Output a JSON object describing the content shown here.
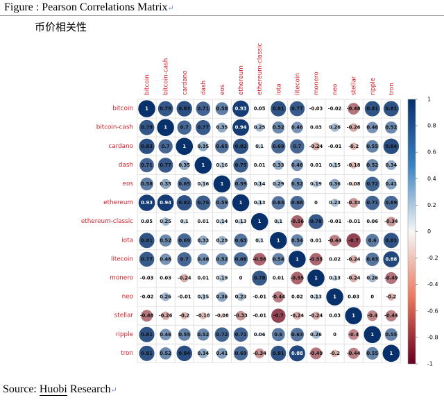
{
  "figure": {
    "prefix": "Figure",
    "separator": " : ",
    "title": "Pearson Correlations Matrix",
    "subtitle": "币价相关性",
    "source_prefix": "Source: ",
    "source_link": "Huobi",
    "source_suffix": " Research",
    "paragraph_mark": "↵"
  },
  "colors": {
    "positive_dark": "#08306b",
    "positive_light": "#d7e8f4",
    "negative_dark": "#67001f",
    "negative_light": "#fbe1d4",
    "label_red": "#d0202a"
  },
  "chart_data": {
    "type": "heatmap",
    "style": "correlation circles (corrplot)",
    "title": "Pearson Correlations Matrix",
    "labels": [
      "bitcoin",
      "bitcoin-cash",
      "cardano",
      "dash",
      "eos",
      "ethereum",
      "ethereum-classic",
      "iota",
      "litecoin",
      "monero",
      "neo",
      "stellar",
      "ripple",
      "tron"
    ],
    "value_labels": [
      [
        "1",
        "0.79",
        "0.83",
        "0.71",
        "0.58",
        "0.93",
        "0.05",
        "0.81",
        "0.77",
        "-0.03",
        "-0.02",
        "-0.48",
        "0.81",
        "0.81"
      ],
      [
        "0.79",
        "1",
        "0.7",
        "0.77",
        "0.35",
        "0.94",
        "0.25",
        "0.52",
        "0.46",
        "0.03",
        "0.26",
        "-0.26",
        "0.46",
        "0.52"
      ],
      [
        "0.83",
        "0.7",
        "1",
        "0.35",
        "0.65",
        "0.82",
        "0.1",
        "0.69",
        "0.7",
        "-0.24",
        "-0.01",
        "-0.2",
        "0.55",
        "0.84"
      ],
      [
        "0.71",
        "0.77",
        "0.35",
        "1",
        "0.16",
        "0.75",
        "0.01",
        "0.33",
        "0.48",
        "0.01",
        "0.15",
        "-0.18",
        "0.52",
        "0.34"
      ],
      [
        "0.58",
        "0.35",
        "0.65",
        "0.16",
        "1",
        "0.59",
        "0.14",
        "0.29",
        "0.52",
        "0.19",
        "0.36",
        "-0.08",
        "0.72",
        "0.41"
      ],
      [
        "0.93",
        "0.94",
        "0.82",
        "0.75",
        "0.59",
        "1",
        "0.13",
        "0.63",
        "0.68",
        "0",
        "0.23",
        "-0.33",
        "0.71",
        "0.69"
      ],
      [
        "0.05",
        "0.25",
        "0.1",
        "0.01",
        "0.14",
        "0.13",
        "1",
        "0.1",
        "-0.56",
        "0.78",
        "-0.01",
        "-0.01",
        "0.06",
        "-0.34"
      ],
      [
        "0.81",
        "0.52",
        "0.69",
        "0.33",
        "0.29",
        "0.63",
        "0.1",
        "1",
        "0.54",
        "0.01",
        "-0.44",
        "-0.7",
        "0.6",
        "0.81"
      ],
      [
        "0.77",
        "0.46",
        "0.7",
        "0.48",
        "0.52",
        "0.68",
        "-0.56",
        "0.54",
        "1",
        "-0.55",
        "0.02",
        "-0.24",
        "0.63",
        "0.88"
      ],
      [
        "-0.03",
        "0.03",
        "-0.24",
        "0.01",
        "0.19",
        "0",
        "0.78",
        "0.01",
        "-0.55",
        "1",
        "0.13",
        "-0.24",
        "0.26",
        "-0.49"
      ],
      [
        "-0.02",
        "0.26",
        "-0.01",
        "0.15",
        "0.36",
        "0.23",
        "-0.01",
        "-0.44",
        "0.02",
        "0.13",
        "1",
        "0.03",
        "0",
        "-0.2"
      ],
      [
        "-0.48",
        "-0.26",
        "-0.2",
        "-0.18",
        "-0.08",
        "-0.33",
        "-0.01",
        "-0.7",
        "-0.24",
        "-0.24",
        "0.03",
        "1",
        "-0.4",
        "-0.44"
      ],
      [
        "0.81",
        "0.46",
        "0.55",
        "0.52",
        "0.72",
        "0.71",
        "0.06",
        "0.6",
        "0.63",
        "0.26",
        "0",
        "-0.4",
        "1",
        "0.55"
      ],
      [
        "0.81",
        "0.52",
        "0.84",
        "0.34",
        "0.41",
        "0.69",
        "-0.34",
        "0.81",
        "0.88",
        "-0.49",
        "-0.2",
        "-0.44",
        "0.55",
        "1"
      ]
    ],
    "colorbar": {
      "range": [
        -1,
        1
      ],
      "ticks": [
        "1",
        "0.8",
        "0.6",
        "0.4",
        "0.2",
        "0",
        "-0.2",
        "-0.4",
        "-0.6",
        "-0.8",
        "-1"
      ]
    },
    "grid": true,
    "legend_placement": "right"
  }
}
